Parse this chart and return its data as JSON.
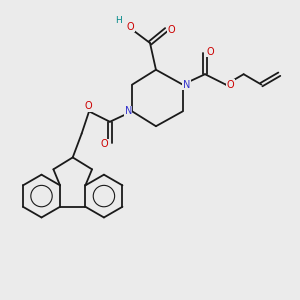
{
  "bg_color": "#ebebeb",
  "N_color": "#3333cc",
  "O_color": "#cc0000",
  "H_color": "#008888",
  "bond_color": "#1a1a1a",
  "lw": 1.3,
  "fs": 7.0,
  "xlim": [
    0,
    10
  ],
  "ylim": [
    0,
    10
  ]
}
